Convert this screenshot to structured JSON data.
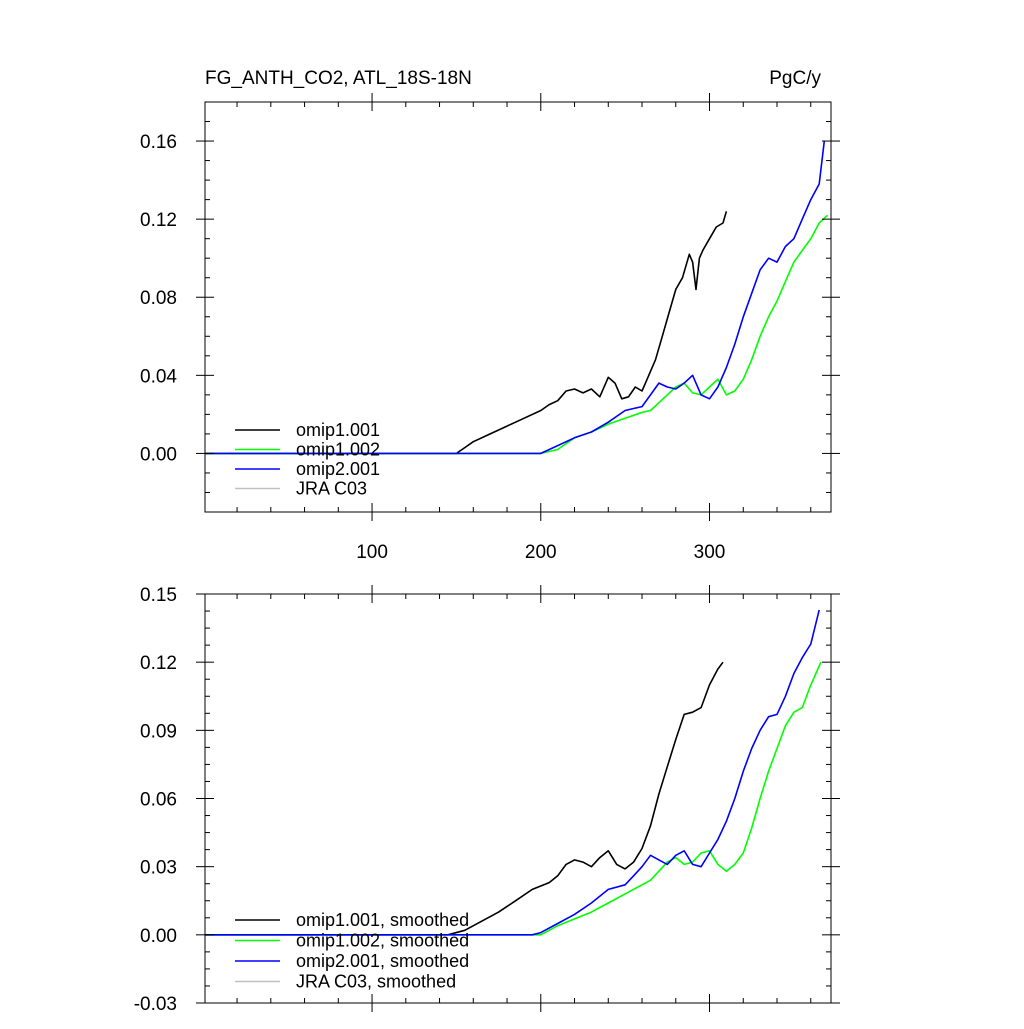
{
  "header": {
    "title": "FG_ANTH_CO2, ATL_18S-18N",
    "units": "PgC/y"
  },
  "chart_data": [
    {
      "type": "line",
      "xlim": [
        1,
        372
      ],
      "ylim": [
        -0.03,
        0.18
      ],
      "xticks": [
        100,
        200,
        300
      ],
      "xtick_labels": [
        "100",
        "200",
        "300"
      ],
      "yticks": [
        0.0,
        0.04,
        0.08,
        0.12,
        0.16
      ],
      "ytick_labels": [
        "0.00",
        "0.04",
        "0.08",
        "0.12",
        "0.16"
      ],
      "grid": false,
      "legend_position": "bottom-left",
      "series": [
        {
          "name": "omip1.001",
          "color": "#000000",
          "x": [
            1,
            150,
            155,
            160,
            170,
            180,
            190,
            200,
            205,
            210,
            215,
            220,
            225,
            230,
            235,
            240,
            244,
            248,
            252,
            256,
            260,
            264,
            268,
            272,
            276,
            280,
            284,
            288,
            290,
            292,
            294,
            296,
            300,
            304,
            308,
            310
          ],
          "y": [
            0.0,
            0.0,
            0.003,
            0.006,
            0.01,
            0.014,
            0.018,
            0.022,
            0.025,
            0.027,
            0.032,
            0.033,
            0.031,
            0.033,
            0.029,
            0.039,
            0.036,
            0.028,
            0.029,
            0.034,
            0.032,
            0.04,
            0.048,
            0.06,
            0.072,
            0.084,
            0.09,
            0.102,
            0.098,
            0.084,
            0.1,
            0.104,
            0.11,
            0.116,
            0.118,
            0.124
          ]
        },
        {
          "name": "omip1.002",
          "color": "#00ff00",
          "x": [
            1,
            200,
            210,
            220,
            230,
            240,
            250,
            260,
            265,
            270,
            275,
            280,
            285,
            290,
            295,
            300,
            305,
            310,
            315,
            320,
            325,
            330,
            335,
            340,
            345,
            350,
            355,
            360,
            365,
            370
          ],
          "y": [
            0.0,
            0.0,
            0.002,
            0.008,
            0.011,
            0.015,
            0.018,
            0.021,
            0.022,
            0.026,
            0.03,
            0.034,
            0.036,
            0.031,
            0.03,
            0.034,
            0.038,
            0.03,
            0.032,
            0.038,
            0.048,
            0.06,
            0.07,
            0.078,
            0.088,
            0.098,
            0.104,
            0.11,
            0.118,
            0.122
          ]
        },
        {
          "name": "omip2.001",
          "color": "#0000ff",
          "x": [
            1,
            200,
            210,
            220,
            230,
            240,
            250,
            255,
            260,
            265,
            270,
            275,
            280,
            285,
            290,
            295,
            300,
            305,
            310,
            315,
            320,
            325,
            330,
            335,
            340,
            345,
            350,
            355,
            360,
            365,
            368
          ],
          "y": [
            0.0,
            0.0,
            0.004,
            0.008,
            0.011,
            0.016,
            0.022,
            0.023,
            0.024,
            0.03,
            0.036,
            0.034,
            0.033,
            0.036,
            0.04,
            0.03,
            0.028,
            0.034,
            0.044,
            0.056,
            0.07,
            0.082,
            0.094,
            0.1,
            0.098,
            0.106,
            0.11,
            0.12,
            0.13,
            0.138,
            0.16
          ]
        },
        {
          "name": "JRA C03",
          "color": "#c0c0c0",
          "x": [],
          "y": []
        }
      ]
    },
    {
      "type": "line",
      "xlim": [
        1,
        372
      ],
      "ylim": [
        -0.03,
        0.15
      ],
      "xticks": [
        100,
        200,
        300
      ],
      "yticks": [
        -0.03,
        0.0,
        0.03,
        0.06,
        0.09,
        0.12,
        0.15
      ],
      "ytick_labels": [
        "-0.03",
        "0.00",
        "0.03",
        "0.06",
        "0.09",
        "0.12",
        "0.15"
      ],
      "grid": false,
      "legend_position": "bottom-left",
      "series": [
        {
          "name": "omip1.001, smoothed",
          "color": "#000000",
          "x": [
            1,
            145,
            155,
            165,
            175,
            185,
            195,
            205,
            210,
            215,
            220,
            225,
            230,
            235,
            240,
            245,
            250,
            255,
            260,
            265,
            270,
            275,
            280,
            285,
            290,
            295,
            300,
            305,
            308
          ],
          "y": [
            0.0,
            0.0,
            0.002,
            0.006,
            0.01,
            0.015,
            0.02,
            0.023,
            0.026,
            0.031,
            0.033,
            0.032,
            0.03,
            0.034,
            0.037,
            0.031,
            0.029,
            0.032,
            0.038,
            0.048,
            0.062,
            0.074,
            0.086,
            0.097,
            0.098,
            0.1,
            0.11,
            0.117,
            0.12
          ]
        },
        {
          "name": "omip1.002, smoothed",
          "color": "#00ff00",
          "x": [
            1,
            200,
            205,
            210,
            220,
            230,
            240,
            250,
            260,
            265,
            270,
            275,
            280,
            285,
            290,
            295,
            300,
            305,
            310,
            315,
            320,
            325,
            330,
            335,
            340,
            345,
            350,
            355,
            360,
            366
          ],
          "y": [
            0.0,
            0.0,
            0.002,
            0.004,
            0.007,
            0.01,
            0.014,
            0.018,
            0.022,
            0.024,
            0.028,
            0.032,
            0.034,
            0.031,
            0.032,
            0.036,
            0.037,
            0.031,
            0.028,
            0.031,
            0.036,
            0.047,
            0.06,
            0.072,
            0.082,
            0.092,
            0.098,
            0.1,
            0.11,
            0.12
          ]
        },
        {
          "name": "omip2.001, smoothed",
          "color": "#0000ff",
          "x": [
            1,
            195,
            200,
            210,
            220,
            230,
            240,
            250,
            255,
            260,
            265,
            270,
            275,
            280,
            285,
            290,
            295,
            300,
            305,
            310,
            315,
            320,
            325,
            330,
            335,
            340,
            345,
            350,
            355,
            360,
            365
          ],
          "y": [
            0.0,
            0.0,
            0.001,
            0.005,
            0.009,
            0.014,
            0.02,
            0.022,
            0.026,
            0.03,
            0.035,
            0.033,
            0.031,
            0.035,
            0.037,
            0.031,
            0.03,
            0.036,
            0.042,
            0.05,
            0.06,
            0.072,
            0.082,
            0.09,
            0.096,
            0.097,
            0.105,
            0.115,
            0.122,
            0.128,
            0.143
          ]
        },
        {
          "name": "JRA C03, smoothed",
          "color": "#c0c0c0",
          "x": [],
          "y": []
        }
      ]
    }
  ]
}
